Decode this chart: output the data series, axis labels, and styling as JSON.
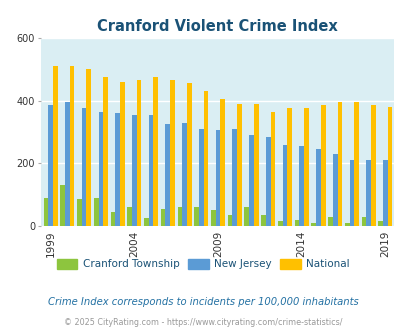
{
  "title": "Cranford Violent Crime Index",
  "subtitle": "Crime Index corresponds to incidents per 100,000 inhabitants",
  "copyright": "© 2025 CityRating.com - https://www.cityrating.com/crime-statistics/",
  "years": [
    1999,
    2000,
    2001,
    2002,
    2003,
    2004,
    2005,
    2006,
    2007,
    2008,
    2009,
    2010,
    2011,
    2012,
    2013,
    2014,
    2015,
    2016,
    2017,
    2018,
    2019
  ],
  "cranford": [
    90,
    130,
    85,
    90,
    45,
    60,
    25,
    55,
    60,
    60,
    50,
    35,
    60,
    35,
    15,
    20,
    10,
    30,
    10,
    30,
    15
  ],
  "new_jersey": [
    385,
    395,
    375,
    365,
    360,
    355,
    355,
    325,
    330,
    310,
    305,
    310,
    290,
    285,
    260,
    255,
    245,
    230,
    210,
    210,
    210
  ],
  "national": [
    510,
    510,
    500,
    475,
    460,
    465,
    475,
    465,
    455,
    430,
    405,
    390,
    390,
    365,
    375,
    375,
    385,
    395,
    395,
    385,
    380
  ],
  "ylim": [
    0,
    600
  ],
  "yticks": [
    0,
    200,
    400,
    600
  ],
  "title_color": "#1a5276",
  "bg_color": "#daeef3",
  "cranford_color": "#8dc53e",
  "nj_color": "#5b9bd5",
  "national_color": "#ffc000",
  "subtitle_color": "#2471a3",
  "copyright_color": "#999999",
  "tick_label_years": [
    1999,
    2004,
    2009,
    2014,
    2019
  ]
}
